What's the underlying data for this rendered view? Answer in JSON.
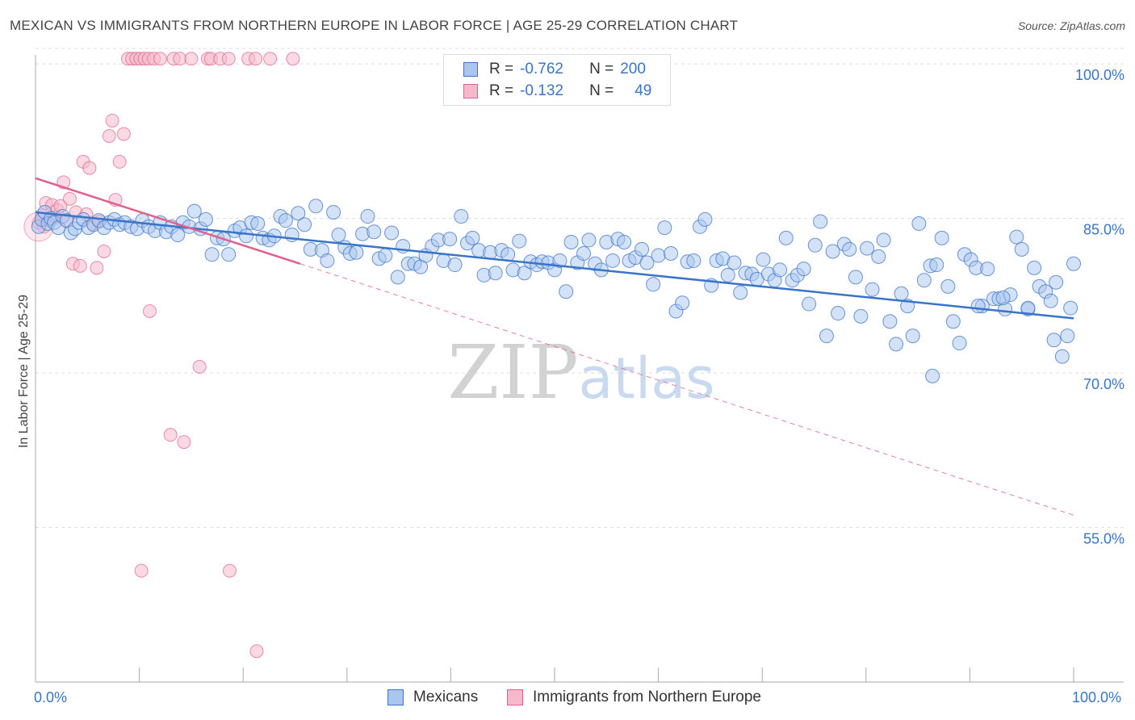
{
  "title": "MEXICAN VS IMMIGRANTS FROM NORTHERN EUROPE IN LABOR FORCE | AGE 25-29 CORRELATION CHART",
  "source": "Source: ZipAtlas.com",
  "watermark": "ZIPatlas",
  "colors": {
    "blue": "#3a74c8",
    "blue_fill": "#aac6ef",
    "pink": "#e0608a",
    "pink_fill": "#f5b9cb",
    "grid": "#dddddd",
    "axis": "#aaaaaa"
  },
  "legend": {
    "rows": [
      {
        "r_label": "R =",
        "r_value": "-0.762",
        "n_label": "N =",
        "n_value": "200"
      },
      {
        "r_label": "R =",
        "r_value": "-0.132",
        "n_label": "N =",
        "n_value": "49"
      }
    ]
  },
  "chart_data": {
    "type": "scatter",
    "ylabel": "In Labor Force | Age 25-29",
    "xlim": [
      0,
      100
    ],
    "ylim": [
      40,
      101.5
    ],
    "x_tick_labels": [
      "0.0%",
      "100.0%"
    ],
    "y_ticks": [
      {
        "value": 100,
        "label": "100.0%"
      },
      {
        "value": 85,
        "label": "85.0%"
      },
      {
        "value": 70,
        "label": "70.0%"
      },
      {
        "value": 55,
        "label": "55.0%"
      }
    ],
    "grid": "horizontal dashed",
    "series": [
      {
        "name": "Mexicans",
        "color": "#3a74c8",
        "trend": {
          "x": [
            0,
            100
          ],
          "y": [
            85.6,
            75.3
          ]
        },
        "points": [
          [
            0.3,
            84.2
          ],
          [
            0.6,
            84.9
          ],
          [
            0.9,
            85.6
          ],
          [
            1.2,
            84.5
          ],
          [
            1.5,
            85.0
          ],
          [
            1.8,
            84.6
          ],
          [
            2.2,
            84.1
          ],
          [
            2.6,
            85.2
          ],
          [
            3.0,
            84.8
          ],
          [
            3.4,
            83.6
          ],
          [
            3.8,
            84.0
          ],
          [
            4.2,
            84.6
          ],
          [
            4.6,
            84.9
          ],
          [
            5.1,
            84.1
          ],
          [
            5.6,
            84.4
          ],
          [
            6.1,
            84.8
          ],
          [
            6.6,
            84.1
          ],
          [
            7.1,
            84.6
          ],
          [
            7.6,
            84.9
          ],
          [
            8.1,
            84.4
          ],
          [
            8.6,
            84.6
          ],
          [
            9.2,
            84.2
          ],
          [
            9.8,
            84.0
          ],
          [
            10.3,
            84.8
          ],
          [
            10.9,
            84.2
          ],
          [
            11.5,
            83.8
          ],
          [
            12.0,
            84.6
          ],
          [
            12.6,
            83.7
          ],
          [
            13.1,
            84.2
          ],
          [
            13.7,
            83.4
          ],
          [
            14.2,
            84.6
          ],
          [
            14.8,
            84.2
          ],
          [
            15.3,
            85.7
          ],
          [
            15.9,
            84.0
          ],
          [
            16.4,
            84.9
          ],
          [
            17.0,
            81.5
          ],
          [
            17.5,
            83.1
          ],
          [
            18.1,
            83.0
          ],
          [
            18.6,
            81.5
          ],
          [
            19.2,
            83.8
          ],
          [
            19.7,
            84.1
          ],
          [
            20.3,
            83.3
          ],
          [
            20.8,
            84.6
          ],
          [
            21.4,
            84.5
          ],
          [
            21.9,
            83.1
          ],
          [
            22.5,
            82.9
          ],
          [
            23.0,
            83.3
          ],
          [
            23.6,
            85.2
          ],
          [
            24.1,
            84.8
          ],
          [
            24.7,
            83.4
          ],
          [
            25.3,
            85.5
          ],
          [
            25.9,
            84.4
          ],
          [
            26.5,
            82.0
          ],
          [
            27.0,
            86.2
          ],
          [
            27.6,
            81.9
          ],
          [
            28.1,
            80.9
          ],
          [
            28.7,
            85.6
          ],
          [
            29.2,
            83.4
          ],
          [
            29.8,
            82.2
          ],
          [
            30.3,
            81.6
          ],
          [
            30.9,
            81.7
          ],
          [
            31.5,
            83.5
          ],
          [
            32.0,
            85.2
          ],
          [
            32.6,
            83.7
          ],
          [
            33.1,
            81.1
          ],
          [
            33.7,
            81.4
          ],
          [
            34.3,
            83.6
          ],
          [
            34.9,
            79.3
          ],
          [
            35.4,
            82.3
          ],
          [
            35.9,
            80.6
          ],
          [
            36.5,
            80.6
          ],
          [
            37.1,
            80.3
          ],
          [
            37.6,
            81.4
          ],
          [
            38.2,
            82.3
          ],
          [
            38.8,
            82.9
          ],
          [
            39.3,
            80.9
          ],
          [
            39.9,
            83.0
          ],
          [
            40.4,
            80.5
          ],
          [
            41.0,
            85.2
          ],
          [
            41.6,
            82.6
          ],
          [
            42.1,
            83.1
          ],
          [
            42.7,
            81.9
          ],
          [
            43.2,
            79.5
          ],
          [
            43.8,
            81.7
          ],
          [
            44.3,
            79.7
          ],
          [
            44.9,
            81.9
          ],
          [
            45.5,
            81.5
          ],
          [
            46.0,
            80.0
          ],
          [
            46.6,
            82.8
          ],
          [
            47.1,
            79.7
          ],
          [
            47.7,
            80.8
          ],
          [
            48.3,
            80.5
          ],
          [
            48.8,
            80.8
          ],
          [
            49.4,
            80.7
          ],
          [
            50.0,
            80.0
          ],
          [
            50.5,
            80.9
          ],
          [
            51.1,
            77.9
          ],
          [
            51.6,
            82.7
          ],
          [
            52.2,
            80.7
          ],
          [
            52.8,
            81.6
          ],
          [
            53.3,
            82.9
          ],
          [
            53.9,
            80.6
          ],
          [
            54.5,
            80.0
          ],
          [
            55.0,
            82.7
          ],
          [
            55.6,
            80.9
          ],
          [
            56.1,
            83.0
          ],
          [
            56.7,
            82.7
          ],
          [
            57.2,
            80.9
          ],
          [
            57.8,
            81.2
          ],
          [
            58.4,
            82.0
          ],
          [
            58.9,
            80.7
          ],
          [
            59.5,
            78.6
          ],
          [
            60.0,
            81.4
          ],
          [
            60.6,
            84.1
          ],
          [
            61.2,
            81.6
          ],
          [
            61.7,
            76.0
          ],
          [
            62.3,
            76.8
          ],
          [
            62.8,
            80.8
          ],
          [
            63.4,
            80.9
          ],
          [
            64.0,
            84.2
          ],
          [
            64.5,
            84.9
          ],
          [
            65.1,
            78.5
          ],
          [
            65.6,
            80.9
          ],
          [
            66.2,
            81.1
          ],
          [
            66.7,
            79.5
          ],
          [
            67.3,
            80.7
          ],
          [
            67.9,
            77.8
          ],
          [
            68.4,
            79.7
          ],
          [
            69.0,
            79.6
          ],
          [
            69.5,
            79.1
          ],
          [
            70.1,
            81.0
          ],
          [
            70.6,
            79.6
          ],
          [
            71.2,
            79.0
          ],
          [
            71.7,
            80.0
          ],
          [
            72.3,
            83.1
          ],
          [
            72.9,
            79.0
          ],
          [
            73.4,
            79.5
          ],
          [
            74.0,
            80.1
          ],
          [
            74.5,
            76.7
          ],
          [
            75.1,
            82.4
          ],
          [
            75.6,
            84.7
          ],
          [
            76.2,
            73.6
          ],
          [
            76.8,
            81.8
          ],
          [
            77.3,
            75.8
          ],
          [
            77.9,
            82.5
          ],
          [
            78.4,
            82.0
          ],
          [
            79.0,
            79.3
          ],
          [
            79.5,
            75.5
          ],
          [
            80.1,
            82.1
          ],
          [
            80.6,
            78.1
          ],
          [
            81.2,
            81.3
          ],
          [
            81.7,
            82.9
          ],
          [
            82.3,
            75.0
          ],
          [
            82.9,
            72.8
          ],
          [
            83.4,
            77.7
          ],
          [
            84.0,
            76.5
          ],
          [
            84.5,
            73.6
          ],
          [
            85.1,
            84.5
          ],
          [
            85.6,
            79.0
          ],
          [
            86.2,
            80.4
          ],
          [
            86.8,
            80.5
          ],
          [
            87.3,
            83.1
          ],
          [
            87.9,
            78.4
          ],
          [
            88.4,
            75.0
          ],
          [
            89.0,
            72.9
          ],
          [
            89.5,
            81.5
          ],
          [
            90.1,
            81.0
          ],
          [
            90.6,
            80.2
          ],
          [
            91.2,
            76.5
          ],
          [
            91.7,
            80.1
          ],
          [
            92.3,
            77.2
          ],
          [
            92.8,
            77.2
          ],
          [
            93.4,
            76.2
          ],
          [
            93.9,
            77.6
          ],
          [
            94.5,
            83.2
          ],
          [
            95.0,
            82.0
          ],
          [
            95.6,
            76.2
          ],
          [
            96.2,
            80.2
          ],
          [
            96.7,
            78.4
          ],
          [
            97.3,
            77.9
          ],
          [
            97.8,
            77.0
          ],
          [
            98.3,
            78.8
          ],
          [
            98.9,
            71.6
          ],
          [
            99.4,
            73.6
          ],
          [
            100.0,
            80.6
          ],
          [
            86.4,
            69.7
          ],
          [
            90.8,
            76.5
          ],
          [
            93.2,
            77.3
          ],
          [
            95.6,
            76.3
          ],
          [
            98.1,
            73.2
          ],
          [
            99.7,
            76.3
          ]
        ]
      },
      {
        "name": "Immigrants from Northern Europe",
        "color": "#e0608a",
        "trend": {
          "x": [
            0,
            25.5
          ],
          "y": [
            88.9,
            80.6
          ]
        },
        "dashed_trend": {
          "x": [
            25.5,
            100
          ],
          "y": [
            80.6,
            56.2
          ]
        },
        "points": [
          [
            0.3,
            84.6
          ],
          [
            0.6,
            85.3
          ],
          [
            0.8,
            84.2
          ],
          [
            1.0,
            86.5
          ],
          [
            1.3,
            84.8
          ],
          [
            1.6,
            86.3
          ],
          [
            1.9,
            85.1
          ],
          [
            2.1,
            85.8
          ],
          [
            2.4,
            86.2
          ],
          [
            2.7,
            88.5
          ],
          [
            3.0,
            84.8
          ],
          [
            3.3,
            86.9
          ],
          [
            3.6,
            80.6
          ],
          [
            3.9,
            85.6
          ],
          [
            4.3,
            80.4
          ],
          [
            4.6,
            90.5
          ],
          [
            4.9,
            85.4
          ],
          [
            5.2,
            89.9
          ],
          [
            5.5,
            84.5
          ],
          [
            5.9,
            80.2
          ],
          [
            6.2,
            84.7
          ],
          [
            6.6,
            81.8
          ],
          [
            7.1,
            93.0
          ],
          [
            7.4,
            94.5
          ],
          [
            7.7,
            86.8
          ],
          [
            8.1,
            90.5
          ],
          [
            8.5,
            93.2
          ],
          [
            8.9,
            100.5
          ],
          [
            9.3,
            100.5
          ],
          [
            9.7,
            100.5
          ],
          [
            10.1,
            100.5
          ],
          [
            10.5,
            100.5
          ],
          [
            10.9,
            100.5
          ],
          [
            11.4,
            100.5
          ],
          [
            12.0,
            100.5
          ],
          [
            13.3,
            100.5
          ],
          [
            13.9,
            100.5
          ],
          [
            15.0,
            100.5
          ],
          [
            15.8,
            70.6
          ],
          [
            16.6,
            100.5
          ],
          [
            16.9,
            100.5
          ],
          [
            17.8,
            100.5
          ],
          [
            18.6,
            100.5
          ],
          [
            20.5,
            100.5
          ],
          [
            21.2,
            100.5
          ],
          [
            22.6,
            100.5
          ],
          [
            24.8,
            100.5
          ],
          [
            11.0,
            76.0
          ],
          [
            13.0,
            64.0
          ],
          [
            14.3,
            63.3
          ],
          [
            10.2,
            50.8
          ],
          [
            18.7,
            50.8
          ],
          [
            21.3,
            43.0
          ]
        ]
      }
    ]
  },
  "bottom_legend": {
    "items": [
      "Mexicans",
      "Immigrants from Northern Europe"
    ]
  }
}
